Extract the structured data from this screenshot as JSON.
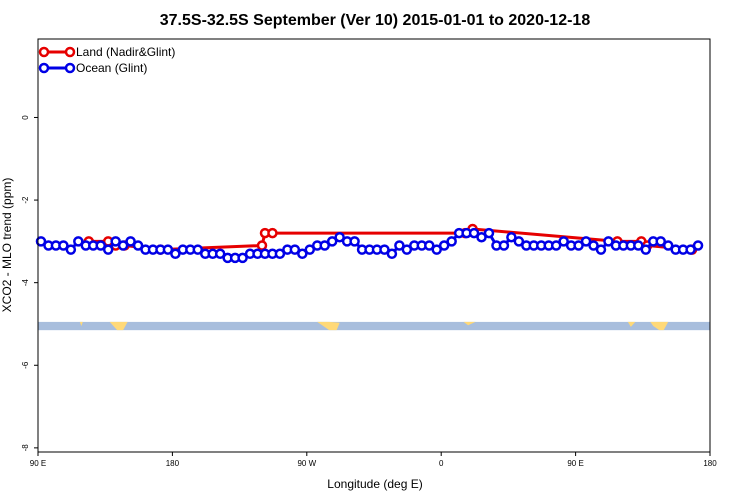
{
  "chart_data": {
    "type": "line",
    "title": "37.5S-32.5S September (Ver 10)   2015-01-01 to 2020-12-18",
    "xlabel": "Longitude (deg E)",
    "ylabel": "XCO2 - MLO trend (ppm)",
    "x_range_label": "90 E to 180 (wrapping through 180, 90 W, 0, 90 E)",
    "xlim_deg": [
      90,
      450
    ],
    "ylim": [
      -8.1,
      1.9
    ],
    "x_ticks": [
      {
        "value": 90,
        "label": "90 E"
      },
      {
        "value": 180,
        "label": "180"
      },
      {
        "value": 270,
        "label": "90 W"
      },
      {
        "value": 360,
        "label": "0"
      },
      {
        "value": 450,
        "label": "90 E"
      },
      {
        "value": 540,
        "label": "180"
      }
    ],
    "y_ticks": [
      {
        "value": 0,
        "label": "0"
      },
      {
        "value": -2,
        "label": "-2"
      },
      {
        "value": -4,
        "label": "-4"
      },
      {
        "value": -6,
        "label": "-6"
      },
      {
        "value": -8,
        "label": "-8"
      }
    ],
    "legend_position": "top-left",
    "grid": false,
    "map_strip": {
      "y_top": -4.95,
      "y_bottom": -5.15,
      "ocean_color": "#a8bedd",
      "land_color": "#ffd978"
    },
    "series": [
      {
        "name": "Land (Nadir&Glint)",
        "color": "#e60000",
        "x": [
          124,
          137,
          142,
          148,
          172,
          240,
          242,
          247,
          376,
          381,
          478,
          494,
          498,
          528
        ],
        "y": [
          -3.0,
          -3.0,
          -3.1,
          -3.1,
          -3.2,
          -3.1,
          -2.8,
          -2.8,
          -2.8,
          -2.7,
          -3.0,
          -3.0,
          -3.1,
          -3.2
        ]
      },
      {
        "name": "Ocean (Glint)",
        "color": "#0000e6",
        "x": [
          92,
          97,
          102,
          107,
          112,
          117,
          122,
          127,
          132,
          137,
          142,
          147,
          152,
          157,
          162,
          167,
          172,
          177,
          182,
          187,
          192,
          197,
          202,
          207,
          212,
          217,
          222,
          227,
          232,
          237,
          242,
          247,
          252,
          257,
          262,
          267,
          272,
          277,
          282,
          287,
          292,
          297,
          302,
          307,
          312,
          317,
          322,
          327,
          332,
          337,
          342,
          347,
          352,
          357,
          362,
          367,
          372,
          377,
          382,
          387,
          392,
          397,
          402,
          407,
          412,
          417,
          422,
          427,
          432,
          437,
          442,
          447,
          452,
          457,
          462,
          467,
          472,
          477,
          482,
          487,
          492,
          497,
          502,
          507,
          512,
          517,
          522,
          527,
          532
        ],
        "y": [
          -3.0,
          -3.1,
          -3.1,
          -3.1,
          -3.2,
          -3.0,
          -3.1,
          -3.1,
          -3.1,
          -3.2,
          -3.0,
          -3.1,
          -3.0,
          -3.1,
          -3.2,
          -3.2,
          -3.2,
          -3.2,
          -3.3,
          -3.2,
          -3.2,
          -3.2,
          -3.3,
          -3.3,
          -3.3,
          -3.4,
          -3.4,
          -3.4,
          -3.3,
          -3.3,
          -3.3,
          -3.3,
          -3.3,
          -3.2,
          -3.2,
          -3.3,
          -3.2,
          -3.1,
          -3.1,
          -3.0,
          -2.9,
          -3.0,
          -3.0,
          -3.2,
          -3.2,
          -3.2,
          -3.2,
          -3.3,
          -3.1,
          -3.2,
          -3.1,
          -3.1,
          -3.1,
          -3.2,
          -3.1,
          -3.0,
          -2.8,
          -2.8,
          -2.8,
          -2.9,
          -2.8,
          -3.1,
          -3.1,
          -2.9,
          -3.0,
          -3.1,
          -3.1,
          -3.1,
          -3.1,
          -3.1,
          -3.0,
          -3.1,
          -3.1,
          -3.0,
          -3.1,
          -3.2,
          -3.0,
          -3.1,
          -3.1,
          -3.1,
          -3.1,
          -3.2,
          -3.0,
          -3.0,
          -3.1,
          -3.2,
          -3.2,
          -3.2,
          -3.1
        ]
      }
    ]
  }
}
